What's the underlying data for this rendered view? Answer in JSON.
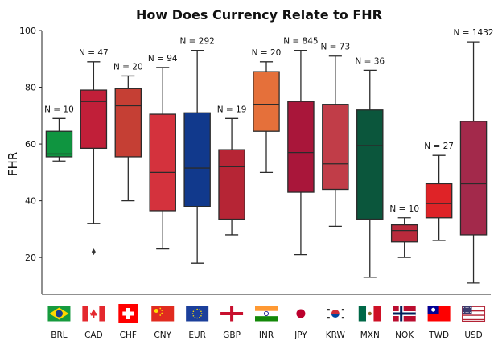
{
  "chart_data": {
    "type": "box",
    "title": "How Does Currency Relate to FHR",
    "xlabel": "",
    "ylabel": "FHR",
    "ylim": [
      7,
      100
    ],
    "yticks": [
      20,
      40,
      60,
      80,
      100
    ],
    "grid": false,
    "legend": "none",
    "boxes": [
      {
        "category": "BRL",
        "label": "N = 10",
        "min": 54,
        "q1": 55.5,
        "median": 56.5,
        "q3": 64.5,
        "max": 69,
        "outliers": [],
        "color": "#0f9540",
        "flag": "brazil"
      },
      {
        "category": "CAD",
        "label": "N = 47",
        "min": 32,
        "q1": 58.5,
        "median": 75,
        "q3": 79,
        "max": 89,
        "outliers": [
          22
        ],
        "color": "#c11f39",
        "flag": "canada"
      },
      {
        "category": "CHF",
        "label": "N = 20",
        "min": 40,
        "q1": 55.5,
        "median": 73.5,
        "q3": 79.5,
        "max": 84,
        "outliers": [],
        "color": "#c53f34",
        "flag": "switzerland"
      },
      {
        "category": "CNY",
        "label": "N = 94",
        "min": 23,
        "q1": 36.5,
        "median": 50,
        "q3": 70.5,
        "max": 87,
        "outliers": [],
        "color": "#d4323d",
        "flag": "china"
      },
      {
        "category": "EUR",
        "label": "N = 292",
        "min": 18,
        "q1": 38,
        "median": 51.5,
        "q3": 71,
        "max": 93,
        "outliers": [],
        "color": "#11398c",
        "flag": "eu"
      },
      {
        "category": "GBP",
        "label": "N = 19",
        "min": 28,
        "q1": 33.5,
        "median": 52,
        "q3": 58,
        "max": 69,
        "outliers": [],
        "color": "#b62535",
        "flag": "uk"
      },
      {
        "category": "INR",
        "label": "N = 20",
        "min": 50,
        "q1": 64.5,
        "median": 74,
        "q3": 85.5,
        "max": 89,
        "outliers": [],
        "color": "#e5703a",
        "flag": "india"
      },
      {
        "category": "JPY",
        "label": "N = 845",
        "min": 21,
        "q1": 43,
        "median": 57,
        "q3": 75,
        "max": 93,
        "outliers": [],
        "color": "#a9163a",
        "flag": "japan"
      },
      {
        "category": "KRW",
        "label": "N = 73",
        "min": 31,
        "q1": 44,
        "median": 53,
        "q3": 74,
        "max": 91,
        "outliers": [],
        "color": "#c13d48",
        "flag": "korea"
      },
      {
        "category": "MXN",
        "label": "N = 36",
        "min": 13,
        "q1": 33.5,
        "median": 59.5,
        "q3": 72,
        "max": 86,
        "outliers": [],
        "color": "#0b563c",
        "flag": "mexico"
      },
      {
        "category": "NOK",
        "label": "N = 10",
        "min": 20,
        "q1": 25.5,
        "median": 29.5,
        "q3": 31.5,
        "max": 34,
        "outliers": [],
        "color": "#b92a3c",
        "flag": "norway"
      },
      {
        "category": "TWD",
        "label": "N = 27",
        "min": 26,
        "q1": 34,
        "median": 39,
        "q3": 46,
        "max": 56,
        "outliers": [],
        "color": "#df2327",
        "flag": "taiwan"
      },
      {
        "category": "USD",
        "label": "N = 1432",
        "min": 11,
        "q1": 28,
        "median": 46,
        "q3": 68,
        "max": 96,
        "outliers": [],
        "color": "#a3294b",
        "flag": "usa"
      }
    ]
  }
}
